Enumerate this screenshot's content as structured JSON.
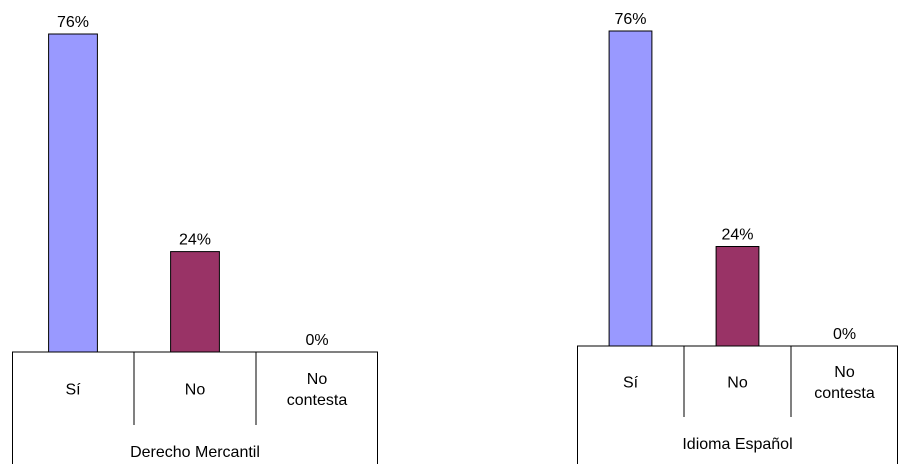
{
  "chart_data": [
    {
      "type": "bar",
      "title": "",
      "group_label": "Derecho Mercantil",
      "categories": [
        "Sí",
        "No",
        "No contesta"
      ],
      "values": [
        76,
        24,
        0
      ],
      "data_labels": [
        "76%",
        "24%",
        "0%"
      ],
      "colors": [
        "#9999FF",
        "#993366",
        "#FFFFCC"
      ],
      "ylim": [
        0,
        80
      ],
      "grid": false
    },
    {
      "type": "bar",
      "title": "",
      "group_label": "Idioma Español",
      "categories": [
        "Sí",
        "No",
        "No contesta"
      ],
      "values": [
        76,
        24,
        0
      ],
      "data_labels": [
        "76%",
        "24%",
        "0%"
      ],
      "colors": [
        "#9999FF",
        "#993366",
        "#FFFFCC"
      ],
      "ylim": [
        0,
        80
      ],
      "grid": false
    }
  ]
}
